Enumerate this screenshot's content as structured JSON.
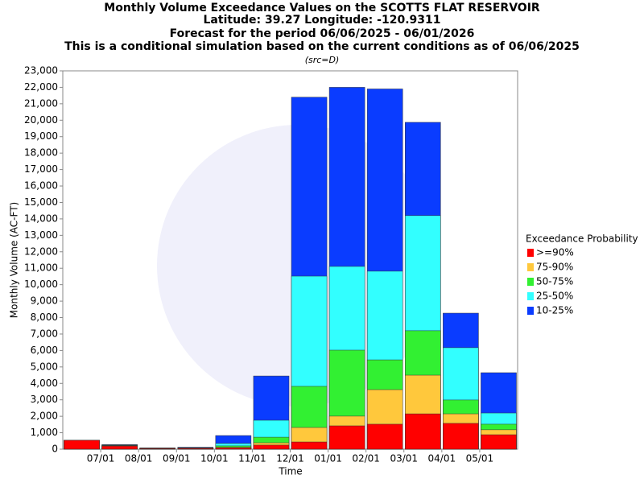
{
  "chart_data": {
    "type": "exceedance_bar",
    "title": "Monthly Volume Exceedance Values on the SCOTTS FLAT RESERVOIR",
    "title_lines": [
      "Latitude: 39.27 Longitude: -120.9311",
      "Forecast for the period 06/06/2025 - 06/01/2026",
      "This is a conditional simulation based on the current conditions as of 06/06/2025"
    ],
    "subtitle": "(src=D)",
    "x_label": "Time",
    "y_label": "Monthly Volume (AC-FT)",
    "legend_title": "Exceedance Probability",
    "legend_position": "right",
    "categories": [
      null,
      null,
      null,
      null,
      null,
      null,
      null,
      null,
      null,
      null,
      null,
      null
    ],
    "xtick_labels": [
      "07/01",
      "08/01",
      "09/01",
      "10/01",
      "11/01",
      "12/01",
      "01/01",
      "02/01",
      "03/01",
      "04/01",
      "05/01"
    ],
    "series": [
      {
        "name": ">=90%",
        "color": "#ff0000",
        "values": [
          540,
          190,
          40,
          50,
          80,
          250,
          440,
          1420,
          1520,
          2150,
          1570,
          880
        ]
      },
      {
        "name": "75-90%",
        "color": "#ffc83c",
        "values": [
          540,
          210,
          50,
          60,
          120,
          390,
          1320,
          2010,
          3620,
          4500,
          2150,
          1180
        ]
      },
      {
        "name": "50-75%",
        "color": "#32f032",
        "values": [
          540,
          230,
          60,
          70,
          200,
          730,
          3820,
          6020,
          5430,
          7200,
          2990,
          1520
        ]
      },
      {
        "name": "25-50%",
        "color": "#32ffff",
        "values": [
          540,
          250,
          70,
          90,
          350,
          1760,
          10520,
          11110,
          10820,
          14200,
          6170,
          2200
        ]
      },
      {
        "name": "10-25%",
        "color": "#0a3cff",
        "values": [
          540,
          280,
          80,
          120,
          830,
          4450,
          21400,
          22000,
          21900,
          19870,
          8270,
          4650
        ]
      }
    ],
    "ylim": [
      0,
      23000
    ],
    "yticks": [
      0,
      {
        "value": 1000,
        "label": "1,000"
      },
      {
        "value": 2000,
        "label": "2,000"
      },
      {
        "value": 3000,
        "label": "3,000"
      },
      {
        "value": 4000,
        "label": "4,000"
      },
      {
        "value": 5000,
        "label": "5,000"
      },
      {
        "value": 6000,
        "label": "6,000"
      },
      {
        "value": 7000,
        "label": "7,000"
      },
      {
        "value": 8000,
        "label": "8,000"
      },
      {
        "value": 9000,
        "label": "9,000"
      },
      {
        "value": 10000,
        "label": "10,000"
      },
      {
        "value": 11000,
        "label": "11,000"
      },
      {
        "value": 12000,
        "label": "12,000"
      },
      {
        "value": 13000,
        "label": "13,000"
      },
      {
        "value": 14000,
        "label": "14,000"
      },
      {
        "value": 15000,
        "label": "15,000"
      },
      {
        "value": 16000,
        "label": "16,000"
      },
      {
        "value": 17000,
        "label": "17,000"
      },
      {
        "value": 18000,
        "label": "18,000"
      },
      {
        "value": 19000,
        "label": "19,000"
      },
      {
        "value": 20000,
        "label": "20,000"
      },
      {
        "value": 21000,
        "label": "21,000"
      },
      {
        "value": 22000,
        "label": "22,000"
      },
      {
        "value": 23000,
        "label": "23,000"
      }
    ],
    "grid": false
  }
}
